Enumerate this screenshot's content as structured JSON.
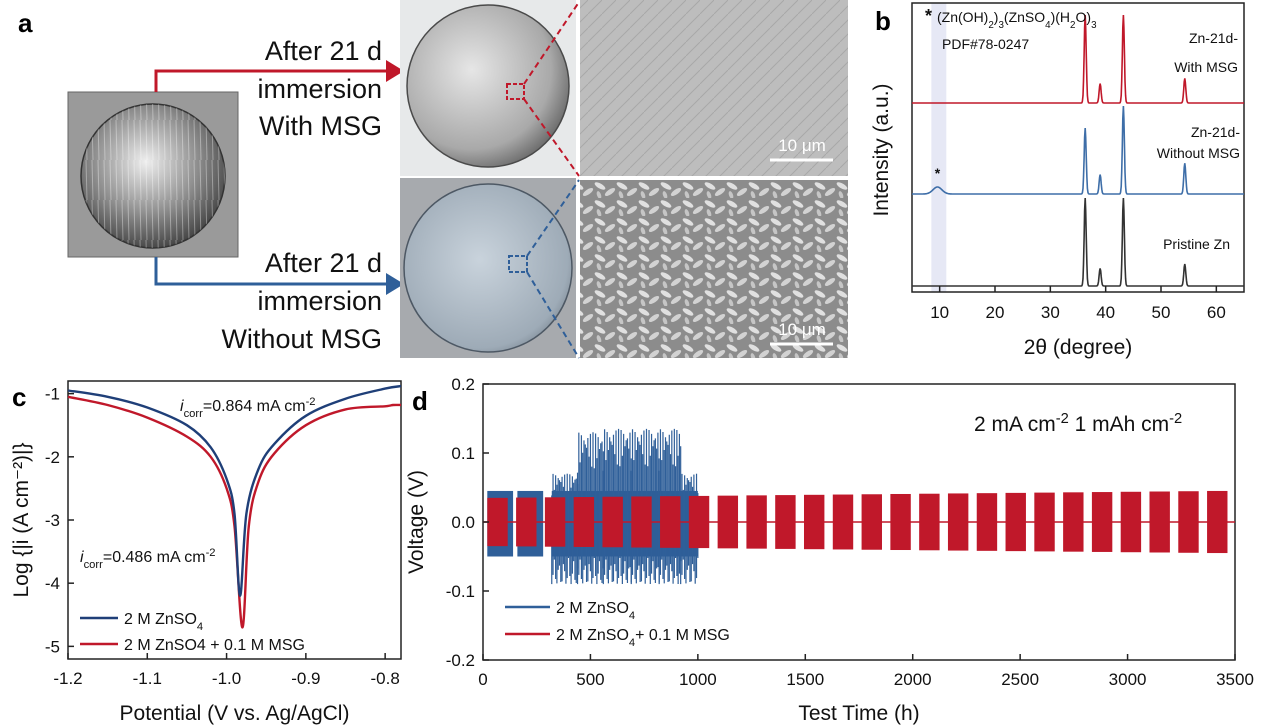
{
  "panels": {
    "a": {
      "letter": "a",
      "top_label_lines": [
        "After 21 d",
        "immersion",
        "With MSG"
      ],
      "bottom_label_lines": [
        "After 21 d",
        "immersion",
        "Without MSG"
      ],
      "scale_bar_top": "10 μm",
      "scale_bar_bottom": "10 μm",
      "colors": {
        "with_msg": "#c0182a",
        "without_msg": "#2f5f99"
      }
    },
    "b": {
      "letter": "b"
    },
    "c": {
      "letter": "c"
    },
    "d": {
      "letter": "d"
    }
  },
  "chart_data": [
    {
      "panel": "b",
      "type": "line",
      "xlabel": "2θ (degree)",
      "ylabel": "Intensity (a.u.)",
      "xlim": [
        5,
        65
      ],
      "xticks": [
        10,
        20,
        30,
        40,
        50,
        60
      ],
      "annotation_formula": "(Zn(OH)2)3(ZnSO4)(H2O)3",
      "annotation_pdf": "PDF#78-0247",
      "marker": "*",
      "series": [
        {
          "name_lines": [
            "Zn-21d-",
            "With MSG"
          ],
          "color": "#c0182a",
          "peaks": [
            [
              36.3,
              1.0
            ],
            [
              39.0,
              0.22
            ],
            [
              43.2,
              1.0
            ],
            [
              54.3,
              0.28
            ]
          ]
        },
        {
          "name_lines": [
            "Zn-21d-",
            "Without MSG"
          ],
          "color": "#3e6ea8",
          "peaks": [
            [
              9.6,
              0.08
            ],
            [
              36.3,
              0.75
            ],
            [
              39.0,
              0.22
            ],
            [
              43.2,
              1.0
            ],
            [
              54.3,
              0.35
            ]
          ]
        },
        {
          "name_lines": [
            "Pristine Zn"
          ],
          "color": "#333333",
          "peaks": [
            [
              36.3,
              1.0
            ],
            [
              39.0,
              0.2
            ],
            [
              43.2,
              1.0
            ],
            [
              54.3,
              0.25
            ]
          ]
        }
      ]
    },
    {
      "panel": "c",
      "type": "line",
      "xlabel": "Potential (V vs. Ag/AgCl)",
      "ylabel": "Log {|i (A cm⁻²)|}",
      "xlim": [
        -1.2,
        -0.78
      ],
      "ylim": [
        -5.2,
        -0.8
      ],
      "xticks": [
        "-1.2",
        "-1.1",
        "-1.0",
        "-0.9",
        "-0.8"
      ],
      "yticks": [
        "-1",
        "-2",
        "-3",
        "-4",
        "-5"
      ],
      "annotations": [
        {
          "italic": "i",
          "sub": "corr",
          "text": "=0.864 mA cm",
          "sup": "-2",
          "color": "#2f5f99"
        },
        {
          "italic": "i",
          "sub": "corr",
          "text": "=0.486 mA cm",
          "sup": "-2",
          "color": "#c0182a"
        }
      ],
      "series": [
        {
          "name": "2 M ZnSO4",
          "name_main": "2 M ZnSO",
          "name_sub": "4",
          "color": "#1f3f78",
          "ecorr": -0.983,
          "min": -4.2,
          "x": [
            -1.2,
            -1.15,
            -1.1,
            -1.05,
            -1.02,
            -1.0,
            -0.99,
            -0.983,
            -0.975,
            -0.96,
            -0.94,
            -0.9,
            -0.85,
            -0.8,
            -0.78
          ],
          "y": [
            -0.95,
            -1.05,
            -1.22,
            -1.5,
            -1.85,
            -2.35,
            -2.9,
            -4.2,
            -2.9,
            -2.2,
            -1.8,
            -1.35,
            -1.08,
            -0.92,
            -0.88
          ]
        },
        {
          "name": "2 M ZnSO4 + 0.1 M MSG",
          "color": "#c0182a",
          "ecorr": -0.98,
          "min": -4.7,
          "x": [
            -1.2,
            -1.15,
            -1.1,
            -1.05,
            -1.02,
            -1.0,
            -0.99,
            -0.98,
            -0.972,
            -0.96,
            -0.94,
            -0.9,
            -0.85,
            -0.8,
            -0.79,
            -0.78
          ],
          "y": [
            -1.05,
            -1.18,
            -1.38,
            -1.68,
            -2.0,
            -2.5,
            -3.1,
            -4.7,
            -3.1,
            -2.4,
            -1.95,
            -1.5,
            -1.25,
            -1.2,
            -1.18,
            -1.18
          ]
        }
      ]
    },
    {
      "panel": "d",
      "type": "line",
      "xlabel": "Test Time (h)",
      "ylabel": "Voltage (V)",
      "xlim": [
        0,
        3500
      ],
      "ylim": [
        -0.2,
        0.2
      ],
      "xticks": [
        0,
        500,
        1000,
        1500,
        2000,
        2500,
        3000,
        3500
      ],
      "yticks": [
        "0.2",
        "0.1",
        "0.0",
        "-0.1",
        "-0.2"
      ],
      "condition_main": "2 mA cm",
      "condition_sup": "-2",
      "condition_main2": "1 mAh cm",
      "condition_sup2": "-2",
      "series": [
        {
          "name": "2 M ZnSO4",
          "name_main": "2 M ZnSO",
          "name_sub": "4",
          "color": "#2f5f99",
          "blocks": [
            [
              20,
              140,
              0.045
            ],
            [
              160,
              280,
              0.05
            ],
            [
              320,
              440,
              0.07
            ],
            [
              440,
              560,
              0.13
            ],
            [
              560,
              690,
              0.135
            ],
            [
              690,
              820,
              0.135
            ],
            [
              820,
              920,
              0.135
            ],
            [
              920,
              1000,
              0.07
            ]
          ]
        },
        {
          "name": "2 M ZnSO4+ 0.1 M MSG",
          "name_main": "2 M ZnSO",
          "name_sub": "4",
          "name_tail": "+ 0.1 M MSG",
          "color": "#c0182a",
          "blocks_count": 26,
          "start": 20,
          "period": 134,
          "width": 95,
          "amp_start": 0.035,
          "amp_end": 0.045
        }
      ]
    }
  ]
}
